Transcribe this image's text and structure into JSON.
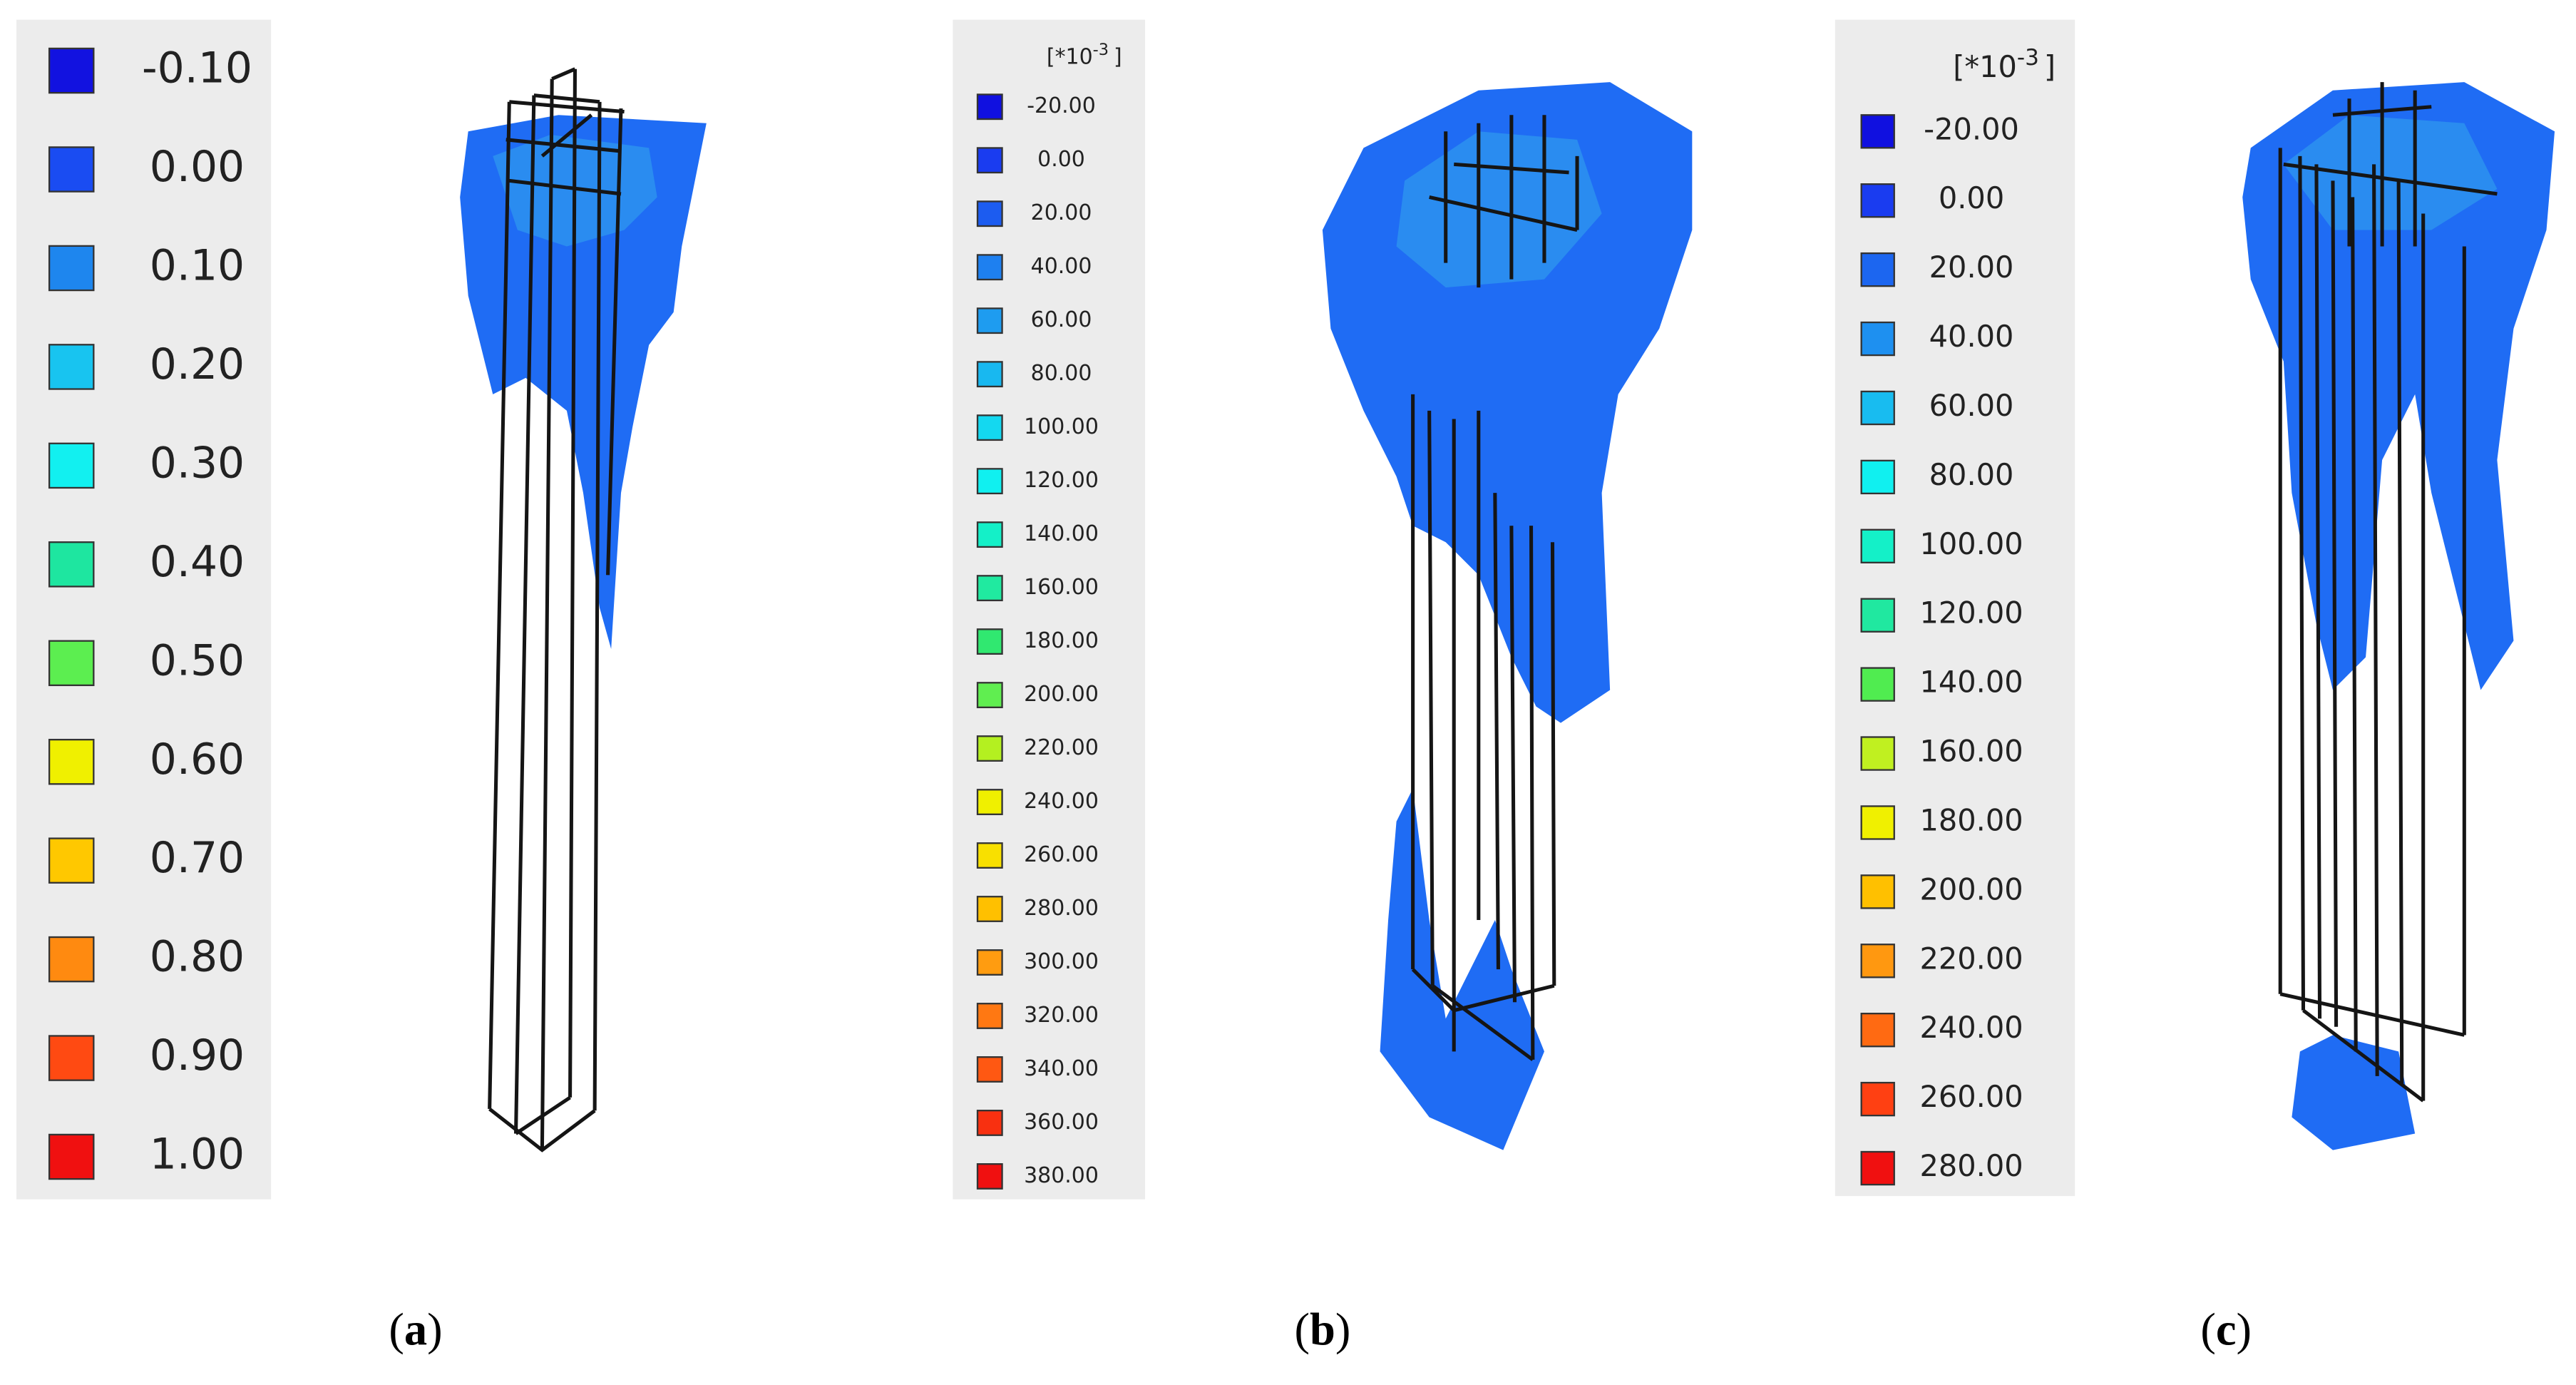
{
  "legends": [
    {
      "labels": [
        "-0.10",
        "0.00",
        "0.10",
        "0.20",
        "0.30",
        "0.40",
        "0.50",
        "0.60",
        "0.70",
        "0.80",
        "0.90",
        "1.00"
      ],
      "colors": [
        "#1212e0",
        "#1a4cf2",
        "#1e86ee",
        "#18c4f0",
        "#12f0f0",
        "#1ee6a0",
        "#5cee50",
        "#f0f000",
        "#ffc800",
        "#ff8a10",
        "#ff4a12",
        "#f01010"
      ]
    },
    {
      "header": {
        "base": "[*10",
        "exp": "-3",
        "close": "]"
      },
      "labels": [
        "-20.00",
        "0.00",
        "20.00",
        "40.00",
        "60.00",
        "80.00",
        "100.00",
        "120.00",
        "140.00",
        "160.00",
        "180.00",
        "200.00",
        "220.00",
        "240.00",
        "260.00",
        "280.00",
        "300.00",
        "320.00",
        "340.00",
        "360.00",
        "380.00"
      ],
      "colors": [
        "#1010e0",
        "#1a3cf0",
        "#1c5cf0",
        "#1e80f0",
        "#1e9cf0",
        "#18b8f0",
        "#14d8f0",
        "#10f0f0",
        "#14f0c8",
        "#20eaa0",
        "#30e870",
        "#60ee50",
        "#b4f020",
        "#f0f000",
        "#f8e000",
        "#ffc000",
        "#ff9c10",
        "#ff7812",
        "#ff5812",
        "#f83010",
        "#f01010"
      ]
    },
    {
      "header": {
        "base": "[*10",
        "exp": "-3",
        "close": "]"
      },
      "labels": [
        "-20.00",
        "0.00",
        "20.00",
        "40.00",
        "60.00",
        "80.00",
        "100.00",
        "120.00",
        "140.00",
        "160.00",
        "180.00",
        "200.00",
        "220.00",
        "240.00",
        "260.00",
        "280.00"
      ],
      "colors": [
        "#1010e0",
        "#1a3cf0",
        "#1c66f0",
        "#1e90f0",
        "#18bcf0",
        "#10f0f0",
        "#14f0c8",
        "#20e8a0",
        "#50ec50",
        "#c0f020",
        "#f0f000",
        "#ffc000",
        "#ff9810",
        "#ff6a12",
        "#ff4012",
        "#f01010"
      ]
    }
  ],
  "captions": [
    "a",
    "b",
    "c"
  ]
}
